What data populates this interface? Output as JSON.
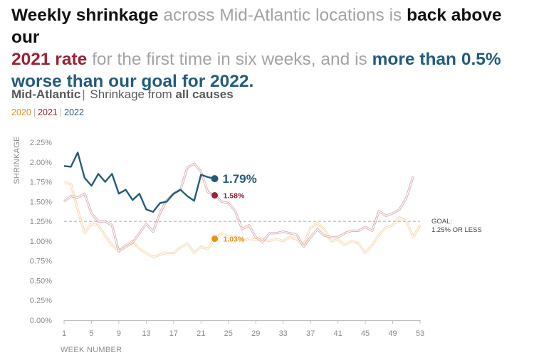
{
  "headline": {
    "p1": "Weekly shrinkage",
    "p2": " across Mid-Atlantic locations is ",
    "p3": "back above our",
    "p4": " ",
    "p5": "2021 rate",
    "p6": " for the first time in six weeks, and is ",
    "p7": "more than 0.5% worse than our goal for 2022."
  },
  "subtitle": {
    "region": "Mid-Atlantic",
    "separator": "|",
    "text": " Shrinkage from ",
    "emphasis": "all causes"
  },
  "legend": [
    {
      "label": "2020",
      "color": "#e8901c"
    },
    {
      "label": "2021",
      "color": "#9b2335"
    },
    {
      "label": "2022",
      "color": "#245b7a"
    }
  ],
  "legend_separator": "|",
  "chart_data": {
    "type": "line",
    "ylabel": "SHRINKAGE",
    "xlabel": "WEEK NUMBER",
    "xlim": [
      1,
      53
    ],
    "ylim": [
      0,
      2.25
    ],
    "x_ticks": [
      1,
      5,
      9,
      13,
      17,
      21,
      25,
      29,
      33,
      37,
      41,
      45,
      49,
      53
    ],
    "y_ticks": [
      "0.00%",
      "0.25%",
      "0.50%",
      "0.75%",
      "1.00%",
      "1.25%",
      "1.50%",
      "1.75%",
      "2.00%",
      "2.25%"
    ],
    "goal": {
      "value": 1.25,
      "label_line1": "GOAL:",
      "label_line2": "1.25% OR LESS"
    },
    "series": [
      {
        "name": "2020",
        "color": "#e8901c",
        "style": "faint",
        "values": [
          1.75,
          1.72,
          1.4,
          1.1,
          1.22,
          1.2,
          1.07,
          0.95,
          0.88,
          0.95,
          1.0,
          0.9,
          0.85,
          0.8,
          0.83,
          0.85,
          0.85,
          0.92,
          0.97,
          0.85,
          0.93,
          0.9,
          1.03,
          1.1,
          1.05,
          1.07,
          1.0,
          1.03,
          1.02,
          1.02,
          1.0,
          1.03,
          1.0,
          1.05,
          1.02,
          0.95,
          1.17,
          1.23,
          1.15,
          1.0,
          1.02,
          0.95,
          1.0,
          0.97,
          0.85,
          0.95,
          1.08,
          1.17,
          1.2,
          1.3,
          1.25,
          1.05,
          1.2
        ]
      },
      {
        "name": "2021",
        "color": "#9b2335",
        "style": "faint",
        "values": [
          1.5,
          1.57,
          1.55,
          1.6,
          1.35,
          1.25,
          1.25,
          1.2,
          0.87,
          0.93,
          0.98,
          1.1,
          1.22,
          1.12,
          1.35,
          1.52,
          1.6,
          1.65,
          1.93,
          1.98,
          1.88,
          1.62,
          1.58,
          1.5,
          1.48,
          1.38,
          1.15,
          1.2,
          1.05,
          0.99,
          1.1,
          1.1,
          1.12,
          1.1,
          1.08,
          0.93,
          1.05,
          1.15,
          1.07,
          1.05,
          1.05,
          1.1,
          1.13,
          1.13,
          1.18,
          1.13,
          1.38,
          1.32,
          1.35,
          1.4,
          1.55,
          1.82
        ]
      },
      {
        "name": "2022",
        "color": "#245b7a",
        "style": "bold",
        "values": [
          1.95,
          1.94,
          2.12,
          1.8,
          1.7,
          1.85,
          1.75,
          1.85,
          1.6,
          1.65,
          1.52,
          1.6,
          1.4,
          1.37,
          1.48,
          1.5,
          1.6,
          1.65,
          1.57,
          1.51,
          1.84,
          1.81,
          1.79
        ]
      }
    ],
    "markers": [
      {
        "series": "2022",
        "week": 23,
        "value": 1.79,
        "label": "1.79%",
        "color": "#245b7a"
      },
      {
        "series": "2021",
        "week": 23,
        "value": 1.58,
        "label": "1.58%",
        "color": "#9b2335"
      },
      {
        "series": "2020",
        "week": 23,
        "value": 1.03,
        "label": "1.03%",
        "color": "#e8901c"
      }
    ]
  }
}
